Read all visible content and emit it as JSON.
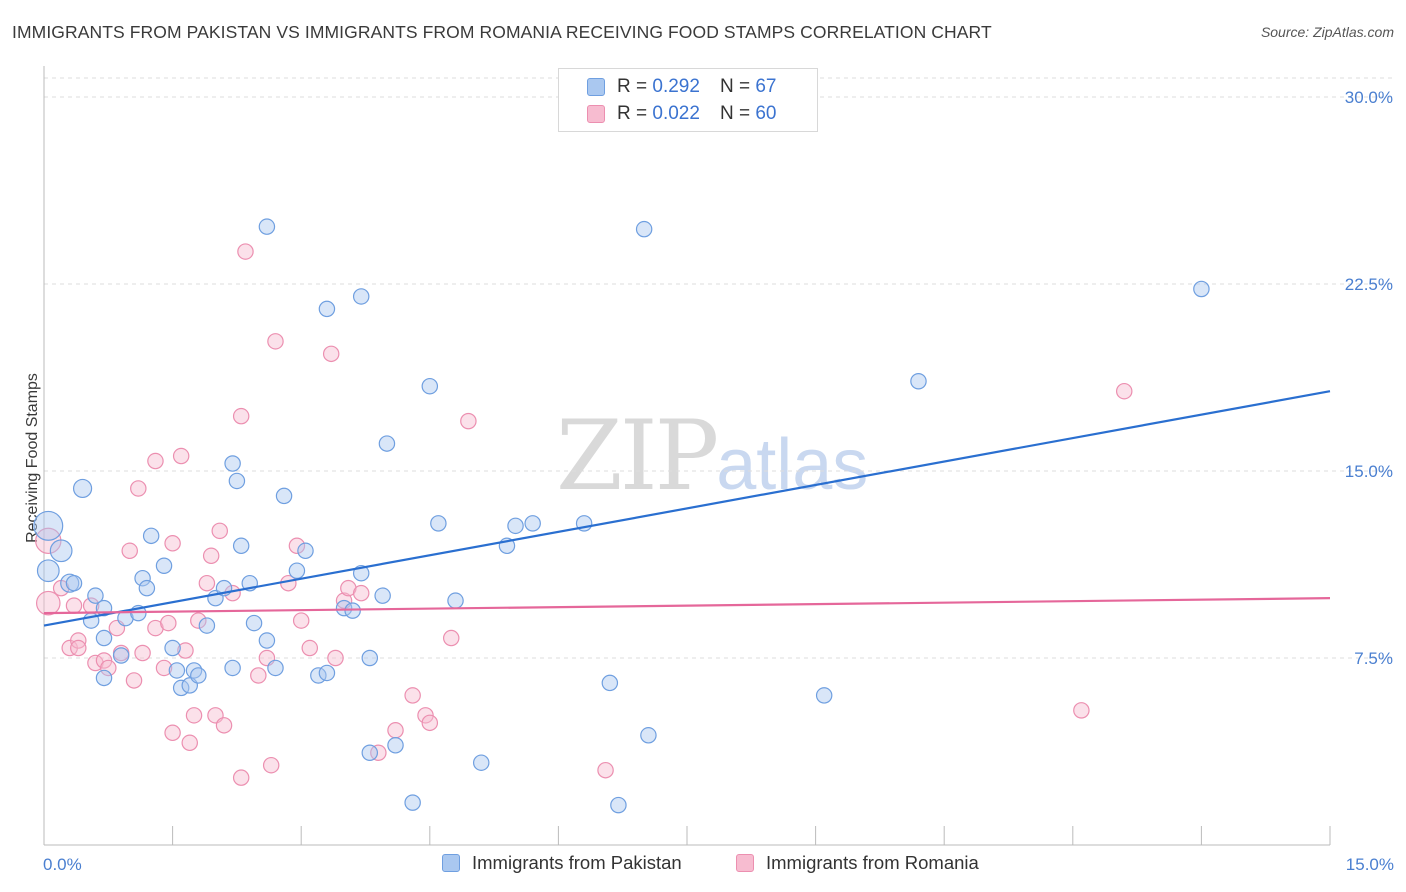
{
  "header": {
    "title": "IMMIGRANTS FROM PAKISTAN VS IMMIGRANTS FROM ROMANIA RECEIVING FOOD STAMPS CORRELATION CHART",
    "source": "Source: ZipAtlas.com"
  },
  "watermark": {
    "zip": "ZIP",
    "atlas": "atlas"
  },
  "legend": {
    "r_label": "R =",
    "n_label": "N =",
    "series": [
      {
        "name": "Immigrants from Pakistan",
        "r": "0.292",
        "n": "67"
      },
      {
        "name": "Immigrants from Romania",
        "r": "0.022",
        "n": "60"
      }
    ]
  },
  "colors": {
    "pakistan_fill": "#aac8f0",
    "pakistan_stroke": "#6f9fe0",
    "pakistan_line": "#2a6fd0",
    "romania_fill": "#f7bcd0",
    "romania_stroke": "#ec8fb0",
    "romania_line": "#e5679a",
    "grid": "#dddddd",
    "tick_text": "#4a7fd0"
  },
  "chart_data": {
    "type": "scatter",
    "title": "IMMIGRANTS FROM PAKISTAN VS IMMIGRANTS FROM ROMANIA RECEIVING FOOD STAMPS CORRELATION CHART",
    "xlabel": "",
    "ylabel": "Receiving Food Stamps",
    "xlim": [
      0,
      15
    ],
    "ylim": [
      0,
      30.5
    ],
    "x_tick_labels": [
      "0.0%",
      "15.0%"
    ],
    "y_ticks": [
      7.5,
      15.0,
      22.5,
      30.0
    ],
    "y_tick_labels": [
      "7.5%",
      "15.0%",
      "22.5%",
      "30.0%"
    ],
    "grid": true,
    "series": [
      {
        "name": "Immigrants from Pakistan",
        "trend": {
          "x0": 0,
          "y0": 8.8,
          "x1": 15,
          "y1": 18.2
        },
        "points": [
          [
            0.05,
            12.8,
            1.6
          ],
          [
            0.05,
            11.0,
            1.2
          ],
          [
            0.2,
            11.8,
            1.2
          ],
          [
            0.3,
            10.5,
            1.0
          ],
          [
            0.45,
            14.3,
            1.0
          ],
          [
            0.6,
            10.0,
            0.85
          ],
          [
            0.55,
            9.0,
            0.85
          ],
          [
            0.7,
            9.5,
            0.85
          ],
          [
            0.7,
            8.3,
            0.85
          ],
          [
            0.7,
            6.7,
            0.85
          ],
          [
            0.9,
            7.6,
            0.85
          ],
          [
            0.95,
            9.1,
            0.85
          ],
          [
            1.1,
            9.3,
            0.85
          ],
          [
            1.15,
            10.7,
            0.85
          ],
          [
            1.2,
            10.3,
            0.85
          ],
          [
            1.25,
            12.4,
            0.85
          ],
          [
            1.4,
            11.2,
            0.85
          ],
          [
            1.5,
            7.9,
            0.85
          ],
          [
            1.55,
            7.0,
            0.85
          ],
          [
            1.6,
            6.3,
            0.85
          ],
          [
            1.7,
            6.4,
            0.85
          ],
          [
            1.75,
            7.0,
            0.85
          ],
          [
            1.8,
            6.8,
            0.85
          ],
          [
            1.9,
            8.8,
            0.85
          ],
          [
            2.0,
            9.9,
            0.85
          ],
          [
            2.1,
            10.3,
            0.85
          ],
          [
            2.2,
            7.1,
            0.85
          ],
          [
            2.3,
            12.0,
            0.85
          ],
          [
            2.2,
            15.3,
            0.85
          ],
          [
            2.25,
            14.6,
            0.85
          ],
          [
            2.4,
            10.5,
            0.85
          ],
          [
            2.45,
            8.9,
            0.85
          ],
          [
            2.6,
            8.2,
            0.85
          ],
          [
            2.7,
            7.1,
            0.85
          ],
          [
            2.8,
            14.0,
            0.85
          ],
          [
            2.95,
            11.0,
            0.85
          ],
          [
            3.05,
            11.8,
            0.85
          ],
          [
            3.2,
            6.8,
            0.85
          ],
          [
            3.3,
            6.9,
            0.85
          ],
          [
            3.5,
            9.5,
            0.85
          ],
          [
            3.6,
            9.4,
            0.85
          ],
          [
            3.7,
            10.9,
            0.85
          ],
          [
            3.8,
            7.5,
            0.85
          ],
          [
            3.95,
            10.0,
            0.85
          ],
          [
            3.8,
            3.7,
            0.85
          ],
          [
            2.6,
            24.8,
            0.85
          ],
          [
            3.3,
            21.5,
            0.85
          ],
          [
            3.7,
            22.0,
            0.85
          ],
          [
            4.0,
            16.1,
            0.85
          ],
          [
            4.1,
            4.0,
            0.85
          ],
          [
            4.3,
            1.7,
            0.85
          ],
          [
            4.5,
            18.4,
            0.85
          ],
          [
            4.6,
            12.9,
            0.85
          ],
          [
            4.8,
            9.8,
            0.85
          ],
          [
            5.1,
            3.3,
            0.85
          ],
          [
            5.4,
            12.0,
            0.85
          ],
          [
            5.5,
            12.8,
            0.85
          ],
          [
            5.7,
            12.9,
            0.85
          ],
          [
            6.3,
            12.9,
            0.85
          ],
          [
            6.6,
            6.5,
            0.85
          ],
          [
            6.7,
            1.6,
            0.85
          ],
          [
            7.0,
            24.7,
            0.85
          ],
          [
            7.05,
            4.4,
            0.85
          ],
          [
            9.1,
            6.0,
            0.85
          ],
          [
            10.2,
            18.6,
            0.85
          ],
          [
            13.5,
            22.3,
            0.85
          ],
          [
            0.35,
            10.5,
            0.85
          ]
        ]
      },
      {
        "name": "Immigrants from Romania",
        "trend": {
          "x0": 0,
          "y0": 9.3,
          "x1": 15,
          "y1": 9.9
        },
        "points": [
          [
            0.05,
            12.2,
            1.4
          ],
          [
            0.05,
            9.7,
            1.3
          ],
          [
            0.2,
            10.3,
            0.85
          ],
          [
            0.3,
            7.9,
            0.85
          ],
          [
            0.35,
            9.6,
            0.85
          ],
          [
            0.4,
            8.2,
            0.85
          ],
          [
            0.4,
            7.9,
            0.85
          ],
          [
            0.55,
            9.6,
            0.85
          ],
          [
            0.6,
            7.3,
            0.85
          ],
          [
            0.7,
            7.4,
            0.85
          ],
          [
            0.75,
            7.1,
            0.85
          ],
          [
            0.85,
            8.7,
            0.85
          ],
          [
            0.9,
            7.7,
            0.85
          ],
          [
            1.0,
            11.8,
            0.85
          ],
          [
            1.05,
            6.6,
            0.85
          ],
          [
            1.15,
            7.7,
            0.85
          ],
          [
            1.1,
            14.3,
            0.85
          ],
          [
            1.3,
            15.4,
            0.85
          ],
          [
            1.3,
            8.7,
            0.85
          ],
          [
            1.4,
            7.1,
            0.85
          ],
          [
            1.45,
            8.9,
            0.85
          ],
          [
            1.5,
            4.5,
            0.85
          ],
          [
            1.5,
            12.1,
            0.85
          ],
          [
            1.6,
            15.6,
            0.85
          ],
          [
            1.65,
            7.8,
            0.85
          ],
          [
            1.7,
            4.1,
            0.85
          ],
          [
            1.75,
            5.2,
            0.85
          ],
          [
            1.8,
            9.0,
            0.85
          ],
          [
            1.9,
            10.5,
            0.85
          ],
          [
            1.95,
            11.6,
            0.85
          ],
          [
            2.0,
            5.2,
            0.85
          ],
          [
            2.05,
            12.6,
            0.85
          ],
          [
            2.1,
            4.8,
            0.85
          ],
          [
            2.2,
            10.1,
            0.85
          ],
          [
            2.3,
            2.7,
            0.85
          ],
          [
            2.3,
            17.2,
            0.85
          ],
          [
            2.35,
            23.8,
            0.85
          ],
          [
            2.5,
            6.8,
            0.85
          ],
          [
            2.6,
            7.5,
            0.85
          ],
          [
            2.65,
            3.2,
            0.85
          ],
          [
            2.7,
            20.2,
            0.85
          ],
          [
            2.85,
            10.5,
            0.85
          ],
          [
            2.95,
            12.0,
            0.85
          ],
          [
            3.0,
            9.0,
            0.85
          ],
          [
            3.1,
            7.9,
            0.85
          ],
          [
            3.35,
            19.7,
            0.85
          ],
          [
            3.4,
            7.5,
            0.85
          ],
          [
            3.5,
            9.8,
            0.85
          ],
          [
            3.55,
            10.3,
            0.85
          ],
          [
            3.9,
            3.7,
            0.85
          ],
          [
            4.1,
            4.6,
            0.85
          ],
          [
            4.3,
            6.0,
            0.85
          ],
          [
            4.45,
            5.2,
            0.85
          ],
          [
            4.5,
            4.9,
            0.85
          ],
          [
            4.75,
            8.3,
            0.85
          ],
          [
            4.95,
            17.0,
            0.85
          ],
          [
            6.55,
            3.0,
            0.85
          ],
          [
            12.1,
            5.4,
            0.85
          ],
          [
            12.6,
            18.2,
            0.85
          ],
          [
            3.7,
            10.1,
            0.85
          ]
        ]
      }
    ]
  }
}
